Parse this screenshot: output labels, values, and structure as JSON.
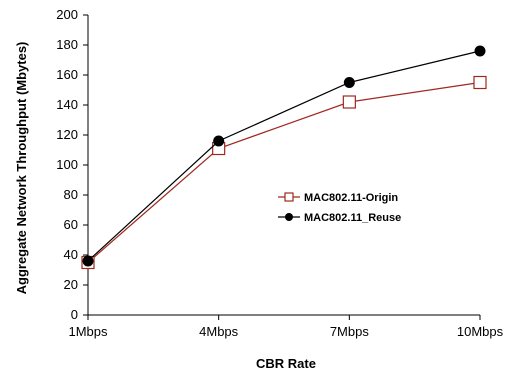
{
  "chart_data": {
    "type": "line",
    "categories": [
      "1Mbps",
      "4Mbps",
      "7Mbps",
      "10Mbps"
    ],
    "series": [
      {
        "name": "MAC802.11-Origin",
        "values": [
          35,
          111,
          142,
          155
        ],
        "color": "#a0281e",
        "marker": "open-square"
      },
      {
        "name": "MAC802.11_Reuse",
        "values": [
          36,
          116,
          155,
          176
        ],
        "color": "#000000",
        "marker": "filled-circle"
      }
    ],
    "xlabel": "CBR Rate",
    "ylabel": "Aggregate Network Throughput (Mbytes)",
    "ylim": [
      0,
      200
    ],
    "yticks": [
      "0",
      "20",
      "40",
      "60",
      "80",
      "100",
      "120",
      "140",
      "160",
      "180",
      "200"
    ],
    "grid": false,
    "legend_position": "center-right"
  }
}
